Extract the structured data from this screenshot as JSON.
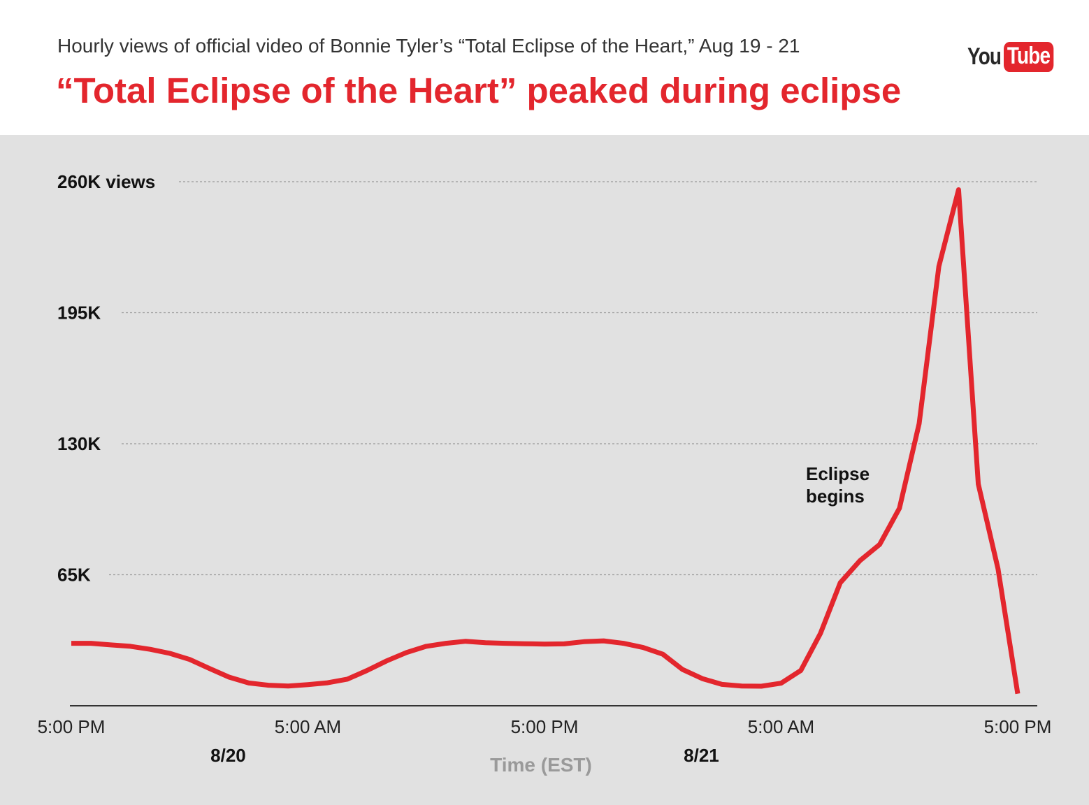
{
  "header": {
    "subtitle": "Hourly views of official video of Bonnie Tyler’s “Total Eclipse of the Heart,” Aug 19 - 21",
    "title": "“Total Eclipse of the Heart” peaked during eclipse",
    "logo_you": "You",
    "logo_tube": "Tube"
  },
  "colors": {
    "accent": "#e3262d",
    "plot_bg": "#e1e1e1",
    "text": "#111111",
    "axis_title": "#9a9a9a"
  },
  "chart_data": {
    "type": "line",
    "title": "“Total Eclipse of the Heart” peaked during eclipse",
    "subtitle": "Hourly views of official video of Bonnie Tyler’s “Total Eclipse of the Heart,” Aug 19 - 21",
    "xlabel": "Time (EST)",
    "ylabel": "",
    "x_ticks": [
      "5:00 PM",
      "5:00 AM",
      "5:00 PM",
      "5:00 AM",
      "5:00 PM"
    ],
    "x_tick_hours": [
      0,
      12,
      24,
      36,
      48
    ],
    "date_labels": [
      {
        "label": "8/20",
        "hour": 7
      },
      {
        "label": "8/21",
        "hour": 31
      }
    ],
    "y_ticks": [
      {
        "value": 260000,
        "label": "260K views"
      },
      {
        "value": 195000,
        "label": "195K"
      },
      {
        "value": 130000,
        "label": "130K"
      },
      {
        "value": 65000,
        "label": "65K"
      }
    ],
    "ylim": [
      0,
      260000
    ],
    "grid": "horizontal dotted",
    "annotations": [
      {
        "text": [
          "Eclipse",
          "begins"
        ],
        "hour": 37.8,
        "value": 110000
      }
    ],
    "series": [
      {
        "color": "#e3262d",
        "x": [
          0,
          1,
          2,
          3,
          4,
          5,
          6,
          7,
          8,
          9,
          10,
          11,
          12,
          13,
          14,
          15,
          16,
          17,
          18,
          19,
          20,
          21,
          22,
          23,
          24,
          25,
          26,
          27,
          28,
          29,
          30,
          31,
          32,
          33,
          34,
          35,
          36,
          37,
          38,
          39,
          40,
          41,
          42,
          43,
          44,
          45,
          46,
          47,
          48
        ],
        "values": [
          31000,
          31000,
          30200,
          29500,
          28000,
          26000,
          23000,
          18500,
          14200,
          11300,
          10200,
          9800,
          10500,
          11400,
          13200,
          17500,
          22300,
          26400,
          29500,
          31000,
          32000,
          31300,
          31000,
          30800,
          30600,
          30700,
          31800,
          32200,
          31000,
          28900,
          25600,
          18000,
          13500,
          10600,
          9800,
          9700,
          11200,
          17500,
          36000,
          61000,
          72000,
          80000,
          98000,
          140000,
          218000,
          256000,
          110000,
          68000,
          6000
        ]
      }
    ]
  }
}
